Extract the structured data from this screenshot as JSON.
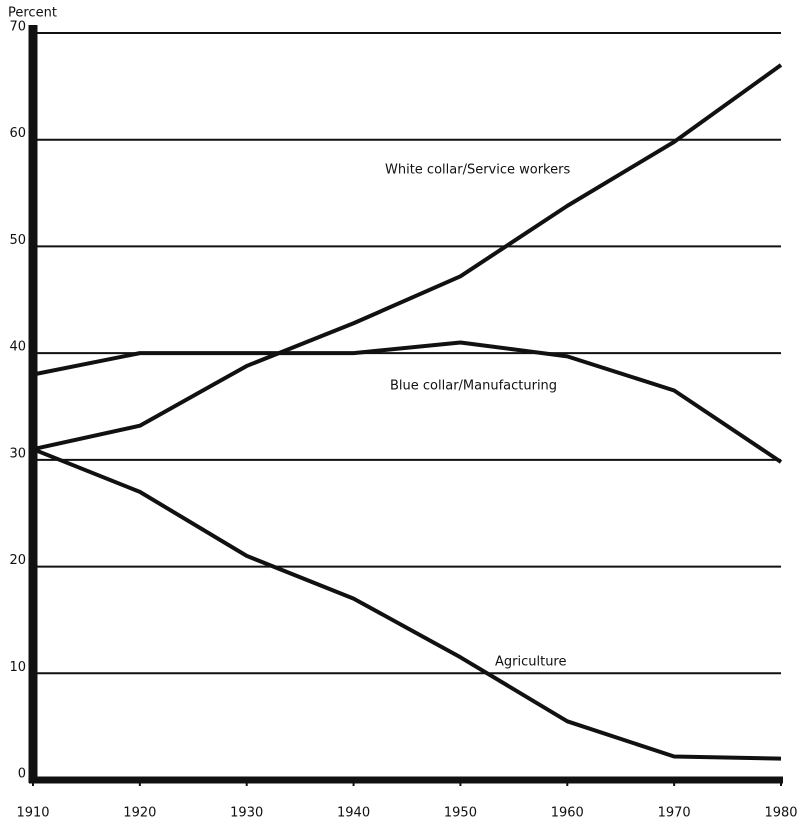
{
  "chart_data": {
    "type": "line",
    "y_label": "Percent",
    "x": [
      1910,
      1920,
      1930,
      1940,
      1950,
      1960,
      1970,
      1980
    ],
    "xlim": [
      1910,
      1980
    ],
    "xticks": [
      1910,
      1920,
      1930,
      1940,
      1950,
      1960,
      1970,
      1980
    ],
    "ylim": [
      0,
      70
    ],
    "yticks": [
      0,
      10,
      20,
      30,
      40,
      50,
      60,
      70
    ],
    "grid": true,
    "series": [
      {
        "name": "White collar/Service workers",
        "color": "#111111",
        "values": [
          31,
          33.2,
          38.8,
          42.8,
          47.2,
          53.8,
          59.8,
          67
        ]
      },
      {
        "name": "Blue collar/Manufacturing",
        "color": "#111111",
        "values": [
          38,
          40,
          40,
          40,
          41,
          39.7,
          36.5,
          29.8
        ]
      },
      {
        "name": "Agriculture",
        "color": "#111111",
        "values": [
          31,
          27,
          21,
          17,
          11.5,
          5.5,
          2.2,
          2
        ]
      }
    ]
  }
}
